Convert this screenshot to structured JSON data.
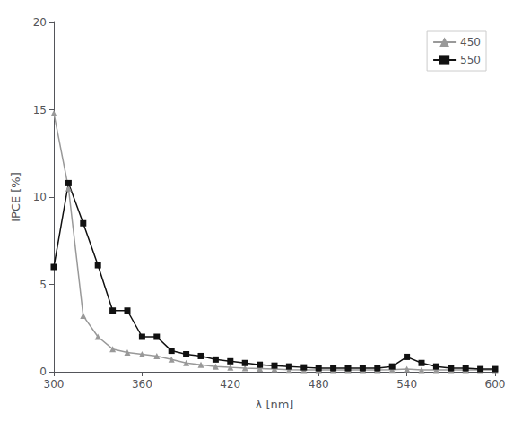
{
  "chart_data": {
    "type": "line",
    "xlabel": "λ [nm]",
    "ylabel": "IPCE [%]",
    "x": [
      300,
      310,
      320,
      330,
      340,
      350,
      360,
      370,
      380,
      390,
      400,
      410,
      420,
      430,
      440,
      450,
      460,
      470,
      480,
      490,
      500,
      510,
      520,
      530,
      540,
      550,
      560,
      570,
      580,
      590,
      600
    ],
    "series": [
      {
        "name": "450",
        "color": "#999999",
        "marker": "triangle",
        "values": [
          14.8,
          10.5,
          3.2,
          2.0,
          1.3,
          1.1,
          1.0,
          0.9,
          0.7,
          0.5,
          0.4,
          0.3,
          0.25,
          0.2,
          0.18,
          0.15,
          0.12,
          0.1,
          0.1,
          0.1,
          0.1,
          0.1,
          0.1,
          0.12,
          0.15,
          0.1,
          0.1,
          0.1,
          0.1,
          0.1,
          0.1
        ]
      },
      {
        "name": "550",
        "color": "#111111",
        "marker": "square",
        "values": [
          6.0,
          10.8,
          8.5,
          6.1,
          3.5,
          3.5,
          2.0,
          2.0,
          1.2,
          1.0,
          0.9,
          0.7,
          0.6,
          0.5,
          0.4,
          0.35,
          0.3,
          0.25,
          0.2,
          0.2,
          0.2,
          0.2,
          0.2,
          0.3,
          0.85,
          0.5,
          0.3,
          0.2,
          0.2,
          0.15,
          0.15
        ]
      }
    ],
    "xlim": [
      300,
      600
    ],
    "ylim": [
      0,
      20
    ],
    "xticks": [
      300,
      360,
      420,
      480,
      540,
      600
    ],
    "yticks": [
      0,
      5,
      10,
      15,
      20
    ],
    "legend": "upper right",
    "grid": false
  }
}
